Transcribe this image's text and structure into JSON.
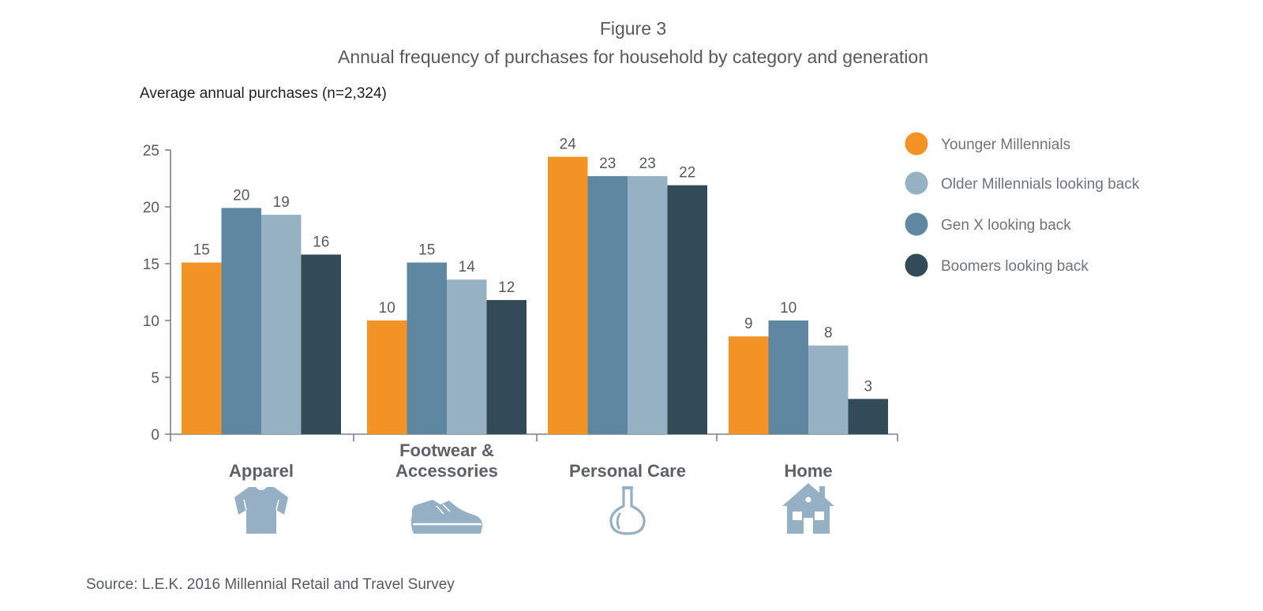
{
  "figure_label": "Figure 3",
  "source": "Source: L.E.K. 2016 Millennial Retail and Travel Survey",
  "chart_data": {
    "type": "bar",
    "title": "Annual frequency of purchases for household by category and generation",
    "ylabel": "Average annual purchases (n=2,324)",
    "xlabel": "",
    "ylim": [
      0,
      25
    ],
    "yticks": [
      0,
      5,
      10,
      15,
      20,
      25
    ],
    "grid": false,
    "legend_position": "right",
    "categories": [
      "Apparel",
      "Footwear & Accessories",
      "Personal Care",
      "Home"
    ],
    "category_lines": [
      [
        "Apparel"
      ],
      [
        "Footwear &",
        "Accessories"
      ],
      [
        "Personal Care"
      ],
      [
        "Home"
      ]
    ],
    "category_icons": [
      "shirt-icon",
      "sneaker-icon",
      "flask-icon",
      "house-icon"
    ],
    "series": [
      {
        "name": "Younger Millennials",
        "color": "#f39325",
        "values": [
          15,
          10,
          24,
          9
        ],
        "value_heights": [
          15.1,
          10.0,
          24.4,
          8.6
        ]
      },
      {
        "name": "Older Millennials looking back",
        "color": "#96b1c2",
        "values": [
          19,
          14,
          23,
          8
        ],
        "value_heights": [
          19.3,
          13.6,
          22.7,
          7.8
        ]
      },
      {
        "name": "Gen X looking back",
        "color": "#5e88a2",
        "values": [
          20,
          15,
          23,
          10
        ],
        "value_heights": [
          19.9,
          15.1,
          22.7,
          10.0
        ]
      },
      {
        "name": "Boomers looking back",
        "color": "#334b58",
        "values": [
          16,
          12,
          22,
          3
        ],
        "value_heights": [
          15.8,
          11.8,
          21.9,
          3.1
        ]
      }
    ],
    "bar_order": [
      0,
      2,
      1,
      3
    ]
  }
}
